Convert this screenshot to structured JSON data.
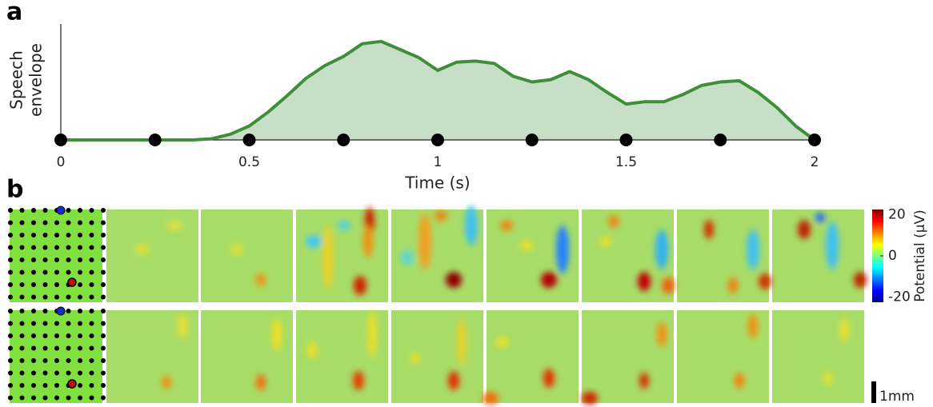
{
  "chart_data": [
    {
      "type": "area",
      "panel_label": "a",
      "ylabel": [
        "Speech",
        "envelope"
      ],
      "xlabel": "Time (s)",
      "x": [
        0,
        0.05,
        0.1,
        0.15,
        0.2,
        0.25,
        0.3,
        0.35,
        0.4,
        0.45,
        0.5,
        0.55,
        0.6,
        0.65,
        0.7,
        0.75,
        0.8,
        0.85,
        0.9,
        0.95,
        1.0,
        1.05,
        1.1,
        1.15,
        1.2,
        1.25,
        1.3,
        1.35,
        1.4,
        1.45,
        1.5,
        1.55,
        1.6,
        1.65,
        1.7,
        1.75,
        1.8,
        1.85,
        1.9,
        1.95,
        2.0
      ],
      "values": [
        0,
        0,
        0,
        0,
        0,
        0,
        0,
        0,
        0.01,
        0.05,
        0.12,
        0.24,
        0.38,
        0.53,
        0.64,
        0.72,
        0.83,
        0.85,
        0.78,
        0.71,
        0.6,
        0.67,
        0.68,
        0.66,
        0.55,
        0.5,
        0.52,
        0.59,
        0.52,
        0.41,
        0.31,
        0.33,
        0.33,
        0.39,
        0.47,
        0.5,
        0.51,
        0.41,
        0.28,
        0.12,
        0
      ],
      "color": "#3f8f3a",
      "fill": "#c6dfc6",
      "markers": [
        0,
        0.25,
        0.5,
        0.75,
        1,
        1.25,
        1.5,
        1.75,
        2
      ],
      "xlim": [
        0,
        2
      ],
      "xticks": [
        0,
        0.5,
        1,
        1.5,
        2
      ],
      "ylim": [
        0,
        1
      ]
    },
    {
      "type": "heatmap",
      "panel_label": "b",
      "colorbar_label": "Potential (µV)",
      "clim": [
        -22.5,
        22.5
      ],
      "cticks": [
        -20,
        0,
        20
      ],
      "scale_bar": "1mm"
    }
  ]
}
